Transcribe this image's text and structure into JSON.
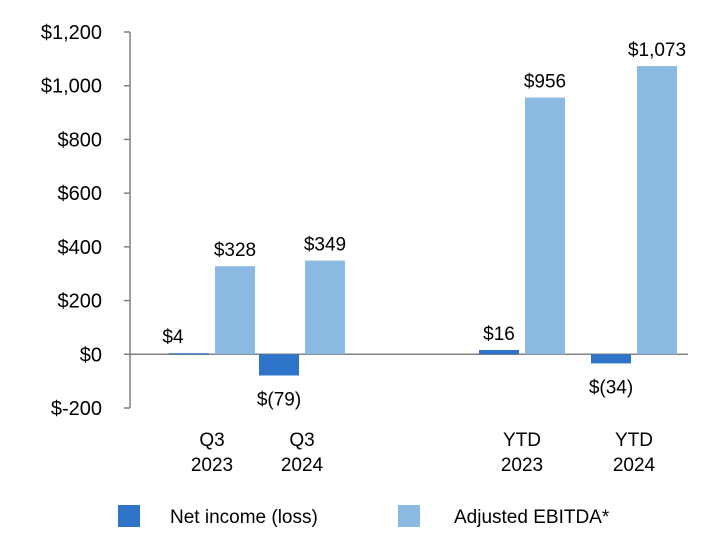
{
  "chart_data": {
    "type": "bar",
    "title": "",
    "xlabel": "",
    "ylabel": "",
    "ylim": [
      -200,
      1200
    ],
    "yticks": [
      1200,
      1000,
      800,
      600,
      400,
      200,
      0,
      -200
    ],
    "ytick_labels": [
      "$1,200",
      "$1,000",
      "$800",
      "$600",
      "$400",
      "$200",
      "$0",
      "$-200"
    ],
    "groups": [
      {
        "line1": "Q3",
        "line2": "2023"
      },
      {
        "line1": "Q3",
        "line2": "2024"
      },
      {
        "line1": "YTD",
        "line2": "2023"
      },
      {
        "line1": "YTD",
        "line2": "2024"
      }
    ],
    "series": [
      {
        "name": "Net income (loss)",
        "color": "#2e75c9",
        "values": [
          4,
          -79,
          16,
          -34
        ],
        "labels": [
          "$4",
          "$(79)",
          "$16",
          "$(34)"
        ]
      },
      {
        "name": "Adjusted EBITDA*",
        "color": "#8cb9e2",
        "values": [
          328,
          349,
          956,
          1073
        ],
        "labels": [
          "$328",
          "$349",
          "$956",
          "$1,073"
        ]
      }
    ],
    "legend_position": "bottom",
    "grid": false
  }
}
